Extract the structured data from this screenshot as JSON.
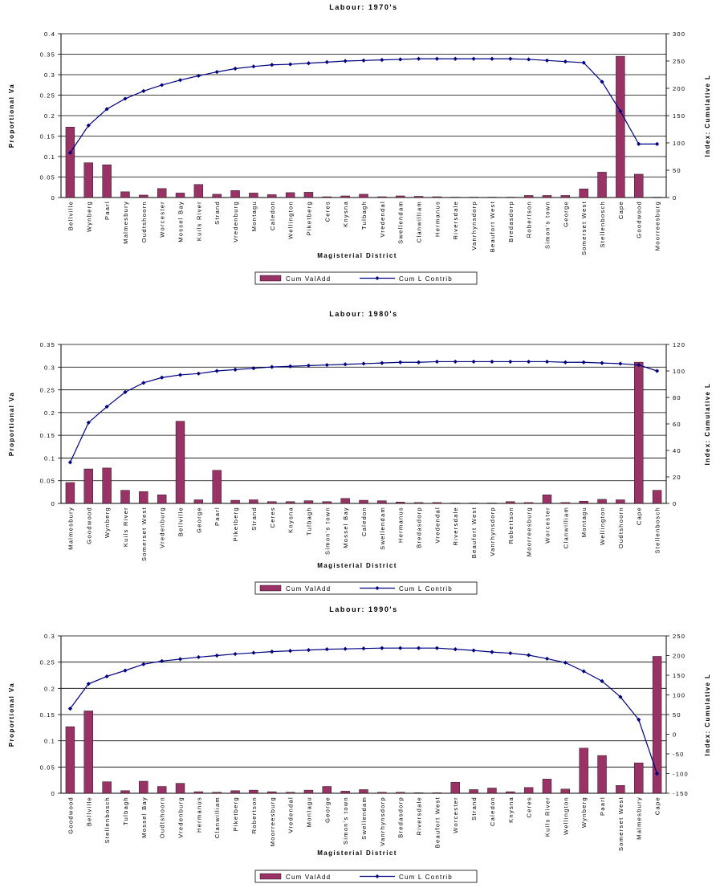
{
  "chart_data": [
    {
      "type": "bar",
      "title": "Labour: 1970's",
      "xlabel": "Magisterial District",
      "ylabel": "Proportional Va",
      "y2label": "Index: Cumulative L",
      "ylim": [
        0,
        0.4
      ],
      "yticks": [
        "0",
        "0.05",
        "0.1",
        "0.15",
        "0.2",
        "0.25",
        "0.3",
        "0.35",
        "0.4"
      ],
      "y2lim": [
        0,
        300
      ],
      "y2ticks": [
        "0",
        "50",
        "100",
        "150",
        "200",
        "250",
        "300"
      ],
      "grid": true,
      "legend_position": "bottom",
      "categories": [
        "Bellville",
        "Wynberg",
        "Paarl",
        "Malmesbury",
        "Oudtshoorn",
        "Worcester",
        "Mossel Bay",
        "Kuils River",
        "Strand",
        "Vredenburg",
        "Montagu",
        "Caledon",
        "Wellington",
        "Piketberg",
        "Ceres",
        "Knysna",
        "Tulbagh",
        "Vredendal",
        "Swellendam",
        "Clanwilliam",
        "Hermanus",
        "Riversdale",
        "Vanrhynsdorp",
        "Beaufort West",
        "Bredasdorp",
        "Robertson",
        "Simon's town",
        "George",
        "Somerset West",
        "Stellenbosch",
        "Cape",
        "Goodwood",
        "Moorreesburg"
      ],
      "series": [
        {
          "name": "Cum ValAdd",
          "type": "bar",
          "axis": "left",
          "color": "#993366",
          "values": [
            0.172,
            0.085,
            0.08,
            0.014,
            0.006,
            0.022,
            0.011,
            0.032,
            0.008,
            0.017,
            0.011,
            0.007,
            0.012,
            0.013,
            0.002,
            0.004,
            0.008,
            0.002,
            0.004,
            0.003,
            0.002,
            0.001,
            0.001,
            0.001,
            0.001,
            0.005,
            0.005,
            0.005,
            0.021,
            0.062,
            0.345,
            0.057,
            0.001
          ]
        },
        {
          "name": "Cum L Contrib",
          "type": "line",
          "axis": "right",
          "color": "#000080",
          "values": [
            82,
            132,
            162,
            181,
            195,
            206,
            215,
            223,
            230,
            236,
            240,
            243,
            244,
            246,
            248,
            250,
            251,
            252,
            253,
            254,
            254,
            254,
            254,
            254,
            254,
            253,
            251,
            249,
            247,
            212,
            158,
            98,
            98
          ]
        }
      ]
    },
    {
      "type": "bar",
      "title": "Labour: 1980's",
      "xlabel": "Magisterial District",
      "ylabel": "Proportional Va",
      "y2label": "Index: Cumulative L",
      "ylim": [
        0,
        0.35
      ],
      "yticks": [
        "0",
        "0.05",
        "0.1",
        "0.15",
        "0.2",
        "0.25",
        "0.3",
        "0.35"
      ],
      "y2lim": [
        0,
        120
      ],
      "y2ticks": [
        "0",
        "20",
        "40",
        "60",
        "80",
        "100",
        "120"
      ],
      "grid": true,
      "legend_position": "bottom",
      "categories": [
        "Malmesbury",
        "Goodwood",
        "Wynberg",
        "Kuils River",
        "Somerset West",
        "Vredenburg",
        "Bellville",
        "George",
        "Paarl",
        "Piketberg",
        "Strand",
        "Ceres",
        "Knysna",
        "Tulbagh",
        "Simon's town",
        "Mossel Bay",
        "Caledon",
        "Swellendam",
        "Hermanus",
        "Bredasdorp",
        "Vredendal",
        "Riversdale",
        "Beaufort West",
        "Vanrhynsdorp",
        "Robertson",
        "Moorreesburg",
        "Worcester",
        "Clanwilliam",
        "Montagu",
        "Wellington",
        "Oudtshoorn",
        "Cape",
        "Stellenbosch"
      ],
      "series": [
        {
          "name": "Cum ValAdd",
          "type": "bar",
          "axis": "left",
          "color": "#993366",
          "values": [
            0.046,
            0.076,
            0.078,
            0.029,
            0.026,
            0.019,
            0.181,
            0.008,
            0.073,
            0.007,
            0.008,
            0.004,
            0.004,
            0.006,
            0.004,
            0.011,
            0.007,
            0.006,
            0.003,
            0.002,
            0.002,
            0.001,
            0.001,
            0.001,
            0.004,
            0.002,
            0.019,
            0.002,
            0.005,
            0.009,
            0.008,
            0.311,
            0.029
          ]
        },
        {
          "name": "Cum L Contrib",
          "type": "line",
          "axis": "right",
          "color": "#000080",
          "values": [
            31,
            61,
            73,
            84,
            91,
            95,
            97,
            98,
            100,
            101,
            102,
            103,
            103.5,
            104,
            104.5,
            105,
            105.5,
            106,
            106.5,
            106.5,
            107,
            107,
            107,
            107,
            107,
            107,
            107,
            106.5,
            106.5,
            106,
            105.5,
            104.5,
            100
          ]
        }
      ]
    },
    {
      "type": "bar",
      "title": "Labour: 1990's",
      "xlabel": "Magisterial District",
      "ylabel": "Proportional Va",
      "y2label": "Index: Cumulative L",
      "ylim": [
        0,
        0.3
      ],
      "yticks": [
        "0",
        "0.05",
        "0.1",
        "0.15",
        "0.2",
        "0.25",
        "0.3"
      ],
      "y2lim": [
        -150,
        250
      ],
      "y2ticks": [
        "-150",
        "-100",
        "-50",
        "0",
        "50",
        "100",
        "150",
        "200",
        "250"
      ],
      "grid": true,
      "legend_position": "bottom",
      "categories": [
        "Goodwood",
        "Bellville",
        "Stellenbosch",
        "Tulbagh",
        "Mossel Bay",
        "Oudtshoorn",
        "Vredenburg",
        "Hermanus",
        "Clanwilliam",
        "Piketberg",
        "Robertson",
        "Moorreesburg",
        "Vredendal",
        "Montagu",
        "George",
        "Simon's town",
        "Swellendam",
        "Vanrhynsdorp",
        "Bredasdorp",
        "Riversdale",
        "Beaufort West",
        "Worcester",
        "Strand",
        "Caledon",
        "Knysna",
        "Ceres",
        "Kuils River",
        "Wellington",
        "Wynberg",
        "Paarl",
        "Somerset West",
        "Malmesbury",
        "Cape"
      ],
      "series": [
        {
          "name": "Cum ValAdd",
          "type": "bar",
          "axis": "left",
          "color": "#993366",
          "values": [
            0.127,
            0.157,
            0.022,
            0.005,
            0.023,
            0.013,
            0.019,
            0.003,
            0.002,
            0.005,
            0.006,
            0.003,
            0.002,
            0.006,
            0.013,
            0.004,
            0.007,
            0.002,
            0.002,
            0.001,
            0.001,
            0.021,
            0.007,
            0.01,
            0.003,
            0.011,
            0.027,
            0.008,
            0.086,
            0.072,
            0.015,
            0.058,
            0.261
          ]
        },
        {
          "name": "Cum L Contrib",
          "type": "line",
          "axis": "right",
          "color": "#000080",
          "values": [
            65,
            128,
            147,
            162,
            178,
            186,
            191,
            196,
            200,
            204,
            207,
            210,
            212,
            214,
            216,
            217,
            218,
            219,
            219,
            219,
            219,
            216,
            213,
            209,
            206,
            201,
            192,
            182,
            160,
            135,
            95,
            37,
            -100
          ]
        }
      ]
    }
  ]
}
